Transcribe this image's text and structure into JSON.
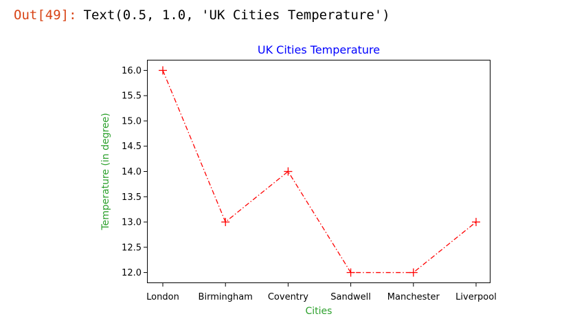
{
  "output_cell": {
    "prompt": "Out[49]:",
    "text": "Text(0.5, 1.0, 'UK Cities Temperature')"
  },
  "chart_data": {
    "type": "line",
    "title": "UK Cities Temperature",
    "xlabel": "Cities",
    "ylabel": "Temperature (in degree)",
    "categories": [
      "London",
      "Birmingham",
      "Coventry",
      "Sandwell",
      "Manchester",
      "Liverpool"
    ],
    "series": [
      {
        "values": [
          16.0,
          13.0,
          14.0,
          12.0,
          12.0,
          13.0
        ],
        "color": "#ff0000",
        "line_style": "dash-dot",
        "marker": "plus"
      }
    ],
    "yticks": [
      "12.0",
      "12.5",
      "13.0",
      "13.5",
      "14.0",
      "14.5",
      "15.0",
      "15.5",
      "16.0"
    ],
    "ylim": [
      11.79,
      16.21
    ],
    "grid": false,
    "colors": {
      "title": "#0000ff",
      "xlabel": "#2ca02c",
      "ylabel": "#2ca02c",
      "axes": "#000000"
    }
  }
}
